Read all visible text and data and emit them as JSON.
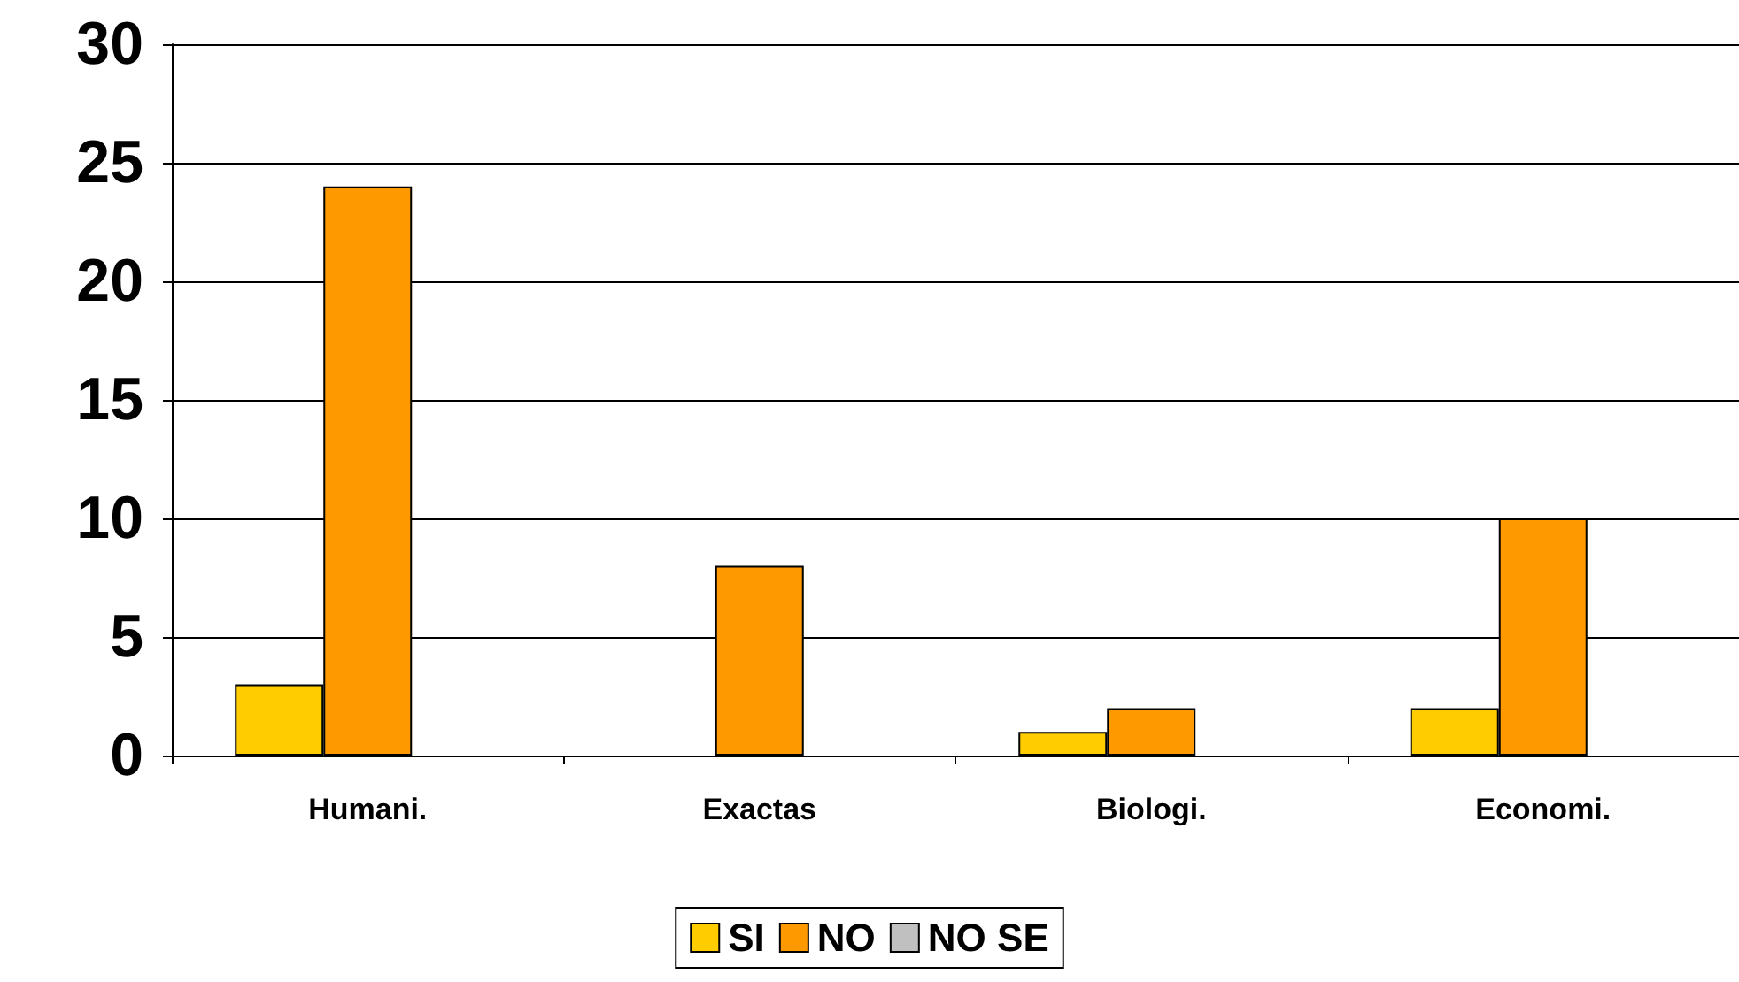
{
  "chart_data": {
    "type": "bar",
    "categories": [
      "Humani.",
      "Exactas",
      "Biologi.",
      "Economi."
    ],
    "series": [
      {
        "name": "SI",
        "color": "#ffcc00",
        "values": [
          3,
          0,
          1,
          2
        ]
      },
      {
        "name": "NO",
        "color": "#ff9900",
        "values": [
          24,
          8,
          2,
          10
        ]
      },
      {
        "name": "NO SE",
        "color": "#c0c0c0",
        "values": [
          0,
          0,
          0,
          0
        ]
      }
    ],
    "ylim": [
      0,
      30
    ],
    "yticks": [
      0,
      5,
      10,
      15,
      20,
      25,
      30
    ],
    "grid": "y",
    "legend": "bottom"
  }
}
